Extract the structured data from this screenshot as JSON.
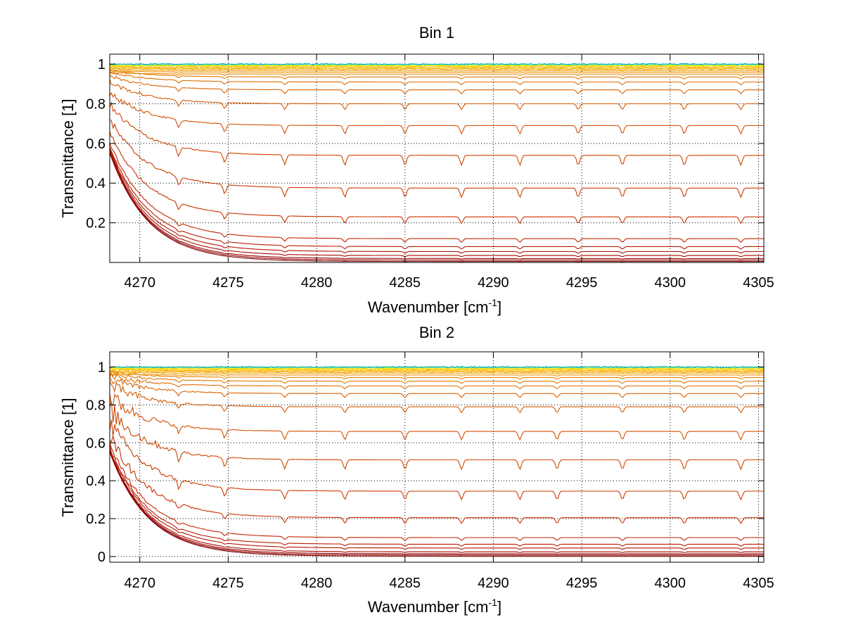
{
  "chart_data": [
    {
      "type": "line",
      "title": "Bin 1",
      "xlabel_main": "Wavenumber [cm",
      "xlabel_sup": "-1",
      "xlabel_end": "]",
      "ylabel": "Transmittance [1]",
      "xlim": [
        4268.3,
        4305.3
      ],
      "ylim": [
        0,
        1.05
      ],
      "xticks": [
        4270,
        4275,
        4280,
        4285,
        4290,
        4295,
        4300,
        4305
      ],
      "xtick_labels": [
        "4270",
        "4275",
        "4280",
        "4285",
        "4290",
        "4295",
        "4300",
        "4305"
      ],
      "yticks": [
        0.2,
        0.4,
        0.6,
        0.8,
        1
      ],
      "ytick_labels": [
        "0.2",
        "0.4",
        "0.6",
        "0.8",
        "1"
      ],
      "grid": true,
      "absorption_lines": [
        4272.2,
        4274.8,
        4278.2,
        4281.6,
        4285.0,
        4288.2,
        4291.5,
        4294.8,
        4297.3,
        4300.8,
        4304.0
      ],
      "series_levels": [
        0.005,
        0.012,
        0.02,
        0.035,
        0.055,
        0.08,
        0.12,
        0.23,
        0.375,
        0.54,
        0.69,
        0.8,
        0.87,
        0.91,
        0.935,
        0.95,
        0.96,
        0.968,
        0.975,
        0.98,
        0.985,
        0.99,
        0.993,
        0.996,
        0.998,
        1.0
      ],
      "series_colors": [
        "#7f0000",
        "#8c0000",
        "#990000",
        "#a50a00",
        "#b01400",
        "#b81c00",
        "#c22600",
        "#c83000",
        "#cc3a00",
        "#d04400",
        "#d44e00",
        "#d85800",
        "#dc6200",
        "#e06c00",
        "#e47800",
        "#e88400",
        "#ec9000",
        "#f09c00",
        "#f4a800",
        "#f8b400",
        "#fcc000",
        "#ffcc00",
        "#f5e000",
        "#c8f020",
        "#60e0a0",
        "#00b0d0"
      ]
    },
    {
      "type": "line",
      "title": "Bin 2",
      "xlabel_main": "Wavenumber [cm",
      "xlabel_sup": "-1",
      "xlabel_end": "]",
      "ylabel": "Transmittance [1]",
      "xlim": [
        4268.3,
        4305.3
      ],
      "ylim": [
        -0.03,
        1.08
      ],
      "xticks": [
        4270,
        4275,
        4280,
        4285,
        4290,
        4295,
        4300,
        4305
      ],
      "xtick_labels": [
        "4270",
        "4275",
        "4280",
        "4285",
        "4290",
        "4295",
        "4300",
        "4305"
      ],
      "yticks": [
        0,
        0.2,
        0.4,
        0.6,
        0.8,
        1
      ],
      "ytick_labels": [
        "0",
        "0.2",
        "0.4",
        "0.6",
        "0.8",
        "1"
      ],
      "grid": true,
      "absorption_lines": [
        4272.2,
        4274.8,
        4278.2,
        4281.6,
        4285.0,
        4288.2,
        4291.5,
        4293.6,
        4297.3,
        4300.8,
        4304.0
      ],
      "series_levels": [
        0.002,
        0.008,
        0.015,
        0.025,
        0.045,
        0.065,
        0.1,
        0.205,
        0.345,
        0.51,
        0.66,
        0.79,
        0.86,
        0.9,
        0.925,
        0.945,
        0.958,
        0.968,
        0.975,
        0.98,
        0.985,
        0.99,
        0.993,
        0.996,
        0.998,
        1.0
      ],
      "series_colors": [
        "#7f0000",
        "#8c0000",
        "#990000",
        "#a50a00",
        "#b01400",
        "#b81c00",
        "#c22600",
        "#c83000",
        "#cc3a00",
        "#d04400",
        "#d44e00",
        "#d85800",
        "#dc6200",
        "#e06c00",
        "#e47800",
        "#e88400",
        "#ec9000",
        "#f09c00",
        "#f4a800",
        "#f8b400",
        "#fcc000",
        "#ffcc00",
        "#f5e000",
        "#c8f020",
        "#60e0a0",
        "#00b0d0"
      ]
    }
  ]
}
